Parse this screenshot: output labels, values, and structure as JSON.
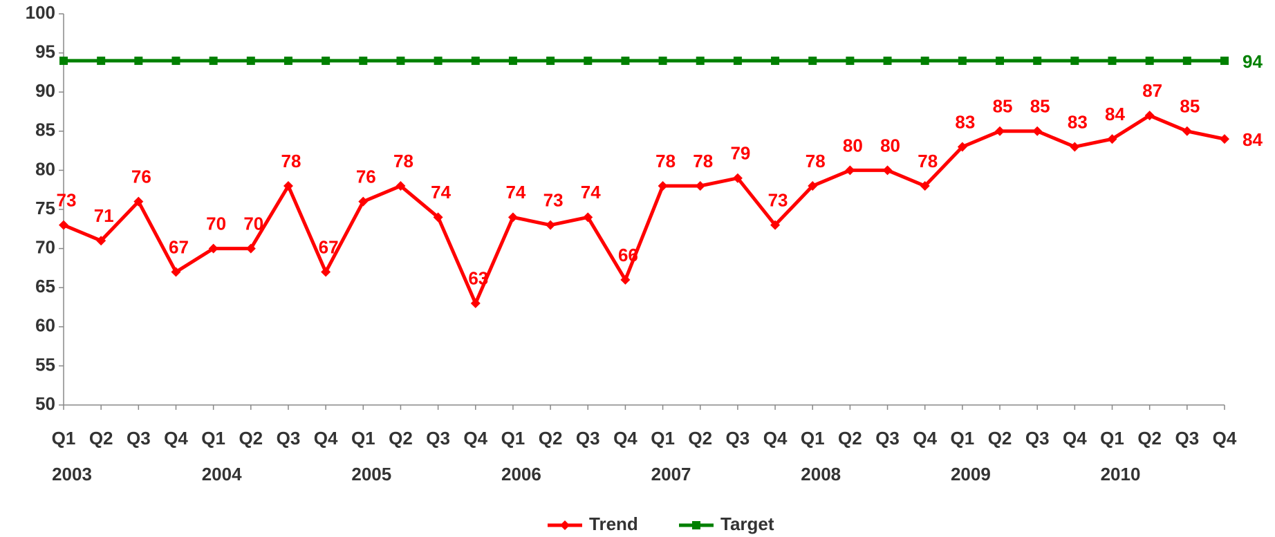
{
  "chart_data": {
    "type": "line",
    "categories": [
      "Q1",
      "Q2",
      "Q3",
      "Q4",
      "Q1",
      "Q2",
      "Q3",
      "Q4",
      "Q1",
      "Q2",
      "Q3",
      "Q4",
      "Q1",
      "Q2",
      "Q3",
      "Q4",
      "Q1",
      "Q2",
      "Q3",
      "Q4",
      "Q1",
      "Q2",
      "Q3",
      "Q4",
      "Q1",
      "Q2",
      "Q3",
      "Q4",
      "Q1",
      "Q2",
      "Q3",
      "Q4"
    ],
    "groups": [
      "2003",
      "2004",
      "2005",
      "2006",
      "2007",
      "2008",
      "2009",
      "2010"
    ],
    "series": [
      {
        "name": "Trend",
        "color": "#ff0000",
        "marker": "diamond",
        "data_labels": true,
        "values": [
          73,
          71,
          76,
          67,
          70,
          70,
          78,
          67,
          76,
          78,
          74,
          63,
          74,
          73,
          74,
          66,
          78,
          78,
          79,
          73,
          78,
          80,
          80,
          78,
          83,
          85,
          85,
          83,
          84,
          87,
          85,
          84
        ]
      },
      {
        "name": "Target",
        "color": "#008000",
        "marker": "square",
        "data_labels": "last",
        "values": [
          94,
          94,
          94,
          94,
          94,
          94,
          94,
          94,
          94,
          94,
          94,
          94,
          94,
          94,
          94,
          94,
          94,
          94,
          94,
          94,
          94,
          94,
          94,
          94,
          94,
          94,
          94,
          94,
          94,
          94,
          94,
          94
        ]
      }
    ],
    "ylim": [
      50,
      100
    ],
    "yticks": [
      50,
      55,
      60,
      65,
      70,
      75,
      80,
      85,
      90,
      95,
      100
    ],
    "grid": false,
    "legend": "bottom"
  }
}
